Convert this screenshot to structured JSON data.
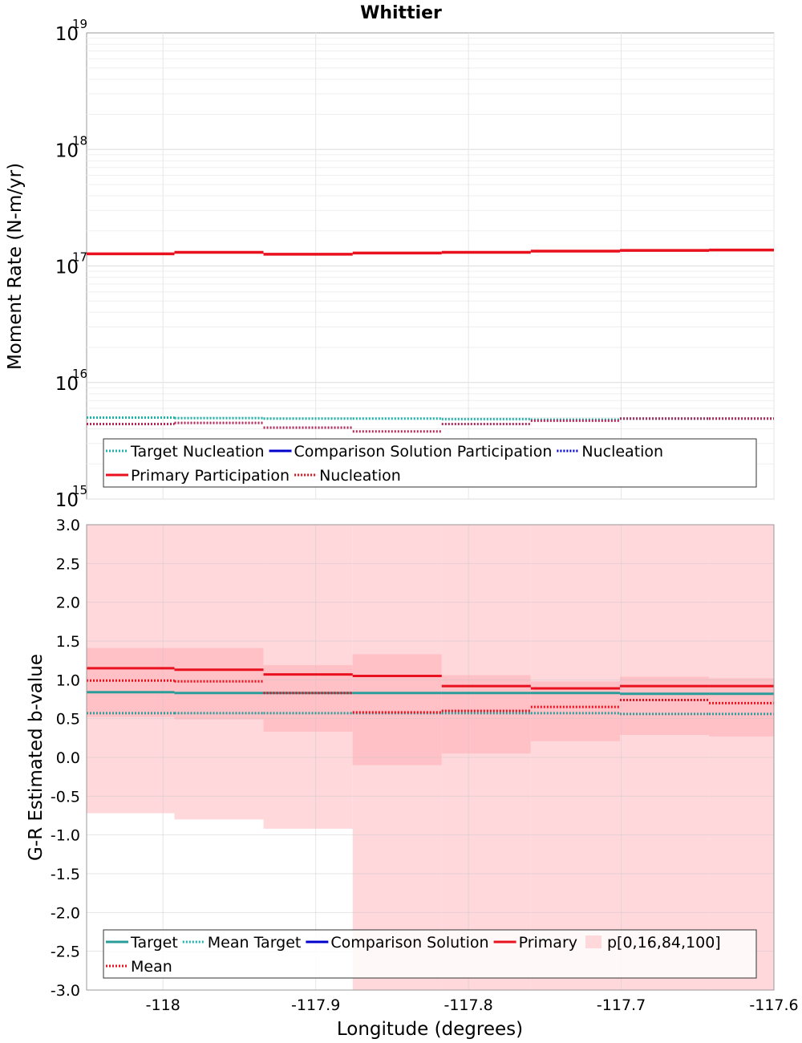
{
  "chart_data": {
    "title": "Whittier",
    "xlabel": "Longitude (degrees)",
    "xlim": [
      -118.05,
      -117.6
    ],
    "xticks": [
      -118,
      -117.9,
      -117.8,
      -117.7,
      -117.6
    ],
    "xtick_labels": [
      "-118",
      "-117.9",
      "-117.8",
      "-117.7",
      "-117.6"
    ],
    "bin_edges": [
      -118.05,
      -117.9925,
      -117.9342,
      -117.8758,
      -117.8175,
      -117.7592,
      -117.7008,
      -117.6425,
      -117.6
    ],
    "colors": {
      "target": "#2a9d9a",
      "mean_target": "#20b2aa",
      "comparison": "#0000cc",
      "primary": "#e8111d",
      "primary_nuc": "#e8111d",
      "overlap_nuc": "#b0285a",
      "band_outer": "#ffd8dc",
      "band_inner": "#ffc0c6",
      "grid": "#e6e6e6",
      "axis": "#999999"
    },
    "panels": [
      {
        "type": "line",
        "scale": "log",
        "ylabel": "Moment Rate (N-m/yr)",
        "ylim": [
          1000000000000000.0,
          1e+19
        ],
        "yticks": [
          {
            "base": "10",
            "exp": "15",
            "value": 1000000000000000.0
          },
          {
            "base": "10",
            "exp": "16",
            "value": 1e+16
          },
          {
            "base": "10",
            "exp": "17",
            "value": 1e+17
          },
          {
            "base": "10",
            "exp": "18",
            "value": 1e+18
          },
          {
            "base": "10",
            "exp": "19",
            "value": 1e+19
          }
        ],
        "series": [
          {
            "name": "Target Nucleation",
            "style": "dotted",
            "color_key": "mean_target",
            "values": [
              5000000000000000.0,
              4950000000000000.0,
              4900000000000000.0,
              4900000000000000.0,
              4850000000000000.0,
              4800000000000000.0,
              4900000000000000.0,
              4900000000000000.0
            ]
          },
          {
            "name": "Primary Participation",
            "style": "solid",
            "color_key": "primary",
            "values": [
              1.27e+17,
              1.31e+17,
              1.26e+17,
              1.29e+17,
              1.31e+17,
              1.34e+17,
              1.36e+17,
              1.37e+17
            ]
          },
          {
            "name": "Nucleation",
            "style": "dotted",
            "color_key": "overlap_nuc",
            "values": [
              4400000000000000.0,
              4500000000000000.0,
              4100000000000000.0,
              3800000000000000.0,
              4400000000000000.0,
              4700000000000000.0,
              4900000000000000.0,
              4900000000000000.0
            ]
          }
        ],
        "legend": {
          "rows": [
            [
              {
                "label": "Target Nucleation",
                "style": "dotted",
                "color_key": "mean_target"
              },
              {
                "label": "Comparison Solution Participation",
                "style": "solid",
                "color_key": "comparison"
              },
              {
                "label": "Nucleation",
                "style": "dotted",
                "color_key": "comparison"
              }
            ],
            [
              {
                "label": "Primary Participation",
                "style": "solid",
                "color_key": "primary"
              },
              {
                "label": "Nucleation",
                "style": "dotted",
                "color_key": "primary_nuc"
              }
            ]
          ]
        }
      },
      {
        "type": "line",
        "scale": "linear",
        "ylabel": "G-R Estimated b-value",
        "ylim": [
          -3.0,
          3.0
        ],
        "yticks": [
          3.0,
          2.5,
          2.0,
          1.5,
          1.0,
          0.5,
          0.0,
          -0.5,
          -1.0,
          -1.5,
          -2.0,
          -2.5,
          -3.0
        ],
        "ytick_labels": [
          "3.0",
          "2.5",
          "2.0",
          "1.5",
          "1.0",
          "0.5",
          "0.0",
          "-0.5",
          "-1.0",
          "-1.5",
          "-2.0",
          "-2.5",
          "-3.0"
        ],
        "bands": {
          "p0": [
            -0.72,
            -0.8,
            -0.92,
            -3.0,
            -3.0,
            -3.0,
            -3.0,
            -3.0
          ],
          "p16": [
            0.52,
            0.49,
            0.33,
            -0.1,
            0.05,
            0.21,
            0.29,
            0.27
          ],
          "p84": [
            1.41,
            1.41,
            1.19,
            1.33,
            1.06,
            0.98,
            1.04,
            1.02
          ],
          "p100": [
            3.0,
            3.0,
            3.0,
            3.0,
            3.0,
            3.0,
            3.0,
            3.0
          ]
        },
        "series": [
          {
            "name": "Target",
            "style": "solid",
            "color_key": "target",
            "values": [
              0.84,
              0.83,
              0.83,
              0.83,
              0.83,
              0.83,
              0.82,
              0.82
            ]
          },
          {
            "name": "Mean Target",
            "style": "dotted",
            "color_key": "target",
            "values": [
              0.57,
              0.57,
              0.57,
              0.57,
              0.57,
              0.57,
              0.56,
              0.56
            ]
          },
          {
            "name": "Primary",
            "style": "solid",
            "color_key": "primary",
            "values": [
              1.15,
              1.13,
              1.07,
              1.05,
              0.92,
              0.89,
              0.92,
              0.92
            ]
          },
          {
            "name": "Mean",
            "style": "dotted",
            "color_key": "primary",
            "values": [
              0.99,
              0.98,
              0.83,
              0.58,
              0.6,
              0.65,
              0.74,
              0.7
            ]
          }
        ],
        "legend": {
          "rows": [
            [
              {
                "label": "Target",
                "style": "solid",
                "color_key": "target"
              },
              {
                "label": "Mean Target",
                "style": "dotted",
                "color_key": "mean_target"
              },
              {
                "label": "Comparison Solution",
                "style": "solid",
                "color_key": "comparison"
              },
              {
                "label": "Primary",
                "style": "solid",
                "color_key": "primary"
              },
              {
                "label": "p[0,16,84,100]",
                "style": "patch",
                "color_key": "band_outer"
              }
            ],
            [
              {
                "label": "Mean",
                "style": "dotted",
                "color_key": "primary"
              }
            ]
          ]
        }
      }
    ]
  }
}
